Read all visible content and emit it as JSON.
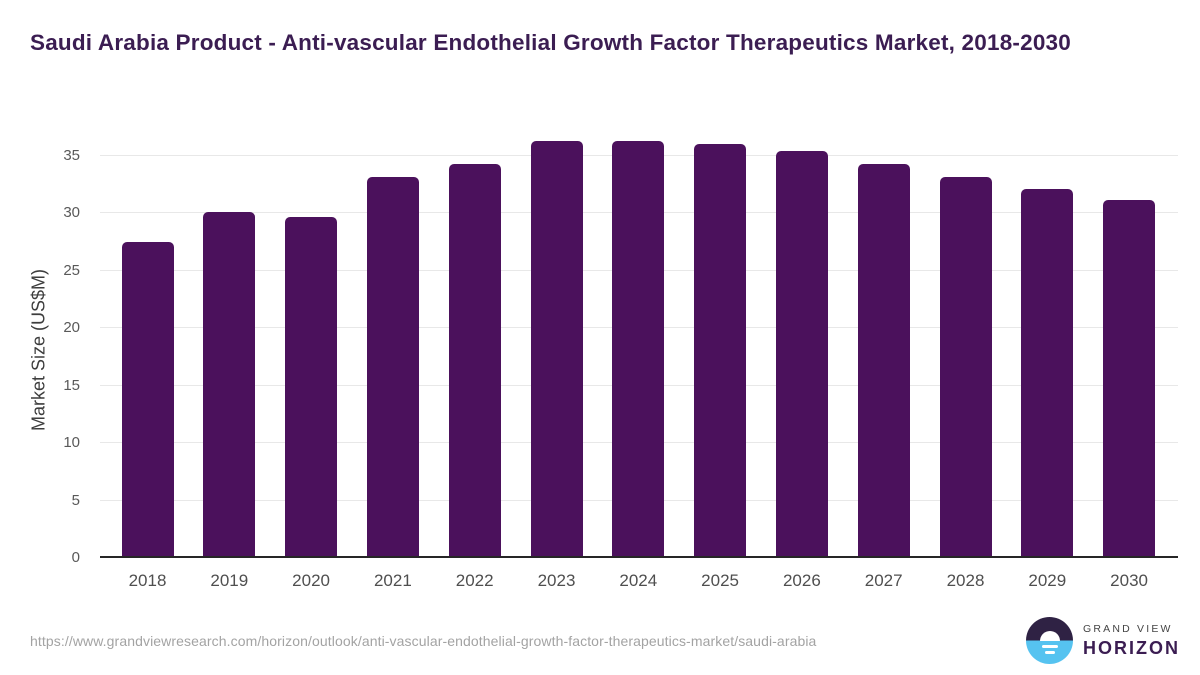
{
  "header": {
    "title": "Saudi Arabia Product - Anti-vascular Endothelial Growth Factor Therapeutics Market, 2018-2030"
  },
  "chart_data": {
    "type": "bar",
    "title": "Saudi Arabia Product - Anti-vascular Endothelial Growth Factor Therapeutics Market, 2018-2030",
    "categories": [
      "2018",
      "2019",
      "2020",
      "2021",
      "2022",
      "2023",
      "2024",
      "2025",
      "2026",
      "2027",
      "2028",
      "2029",
      "2030"
    ],
    "values": [
      27.3,
      29.9,
      29.5,
      33.0,
      34.1,
      36.1,
      36.1,
      35.8,
      35.2,
      34.1,
      33.0,
      31.9,
      31.0
    ],
    "xlabel": "",
    "ylabel": "Market Size (US$M)",
    "yticks": [
      0,
      5,
      10,
      15,
      20,
      25,
      30,
      35
    ],
    "ylim": [
      0,
      36.5
    ],
    "grid": true,
    "legend": "none",
    "bar_color": "#4b115c",
    "gridline_color": "#e8e8e8",
    "axis_line_color": "#262626",
    "tick_label_color": "#595959"
  },
  "footer": {
    "source_url": "https://www.grandviewresearch.com/horizon/outlook/anti-vascular-endothelial-growth-factor-therapeutics-market/saudi-arabia",
    "logo": {
      "top_text": "GRAND VIEW",
      "bottom_text": "HORIZON",
      "icon": "sunrise-circle-icon",
      "icon_top_color": "#2f2244",
      "icon_bottom_color": "#56c3f0"
    }
  },
  "colors": {
    "title": "#3b1d52",
    "background": "#ffffff",
    "url_text": "#a3a3a3"
  }
}
